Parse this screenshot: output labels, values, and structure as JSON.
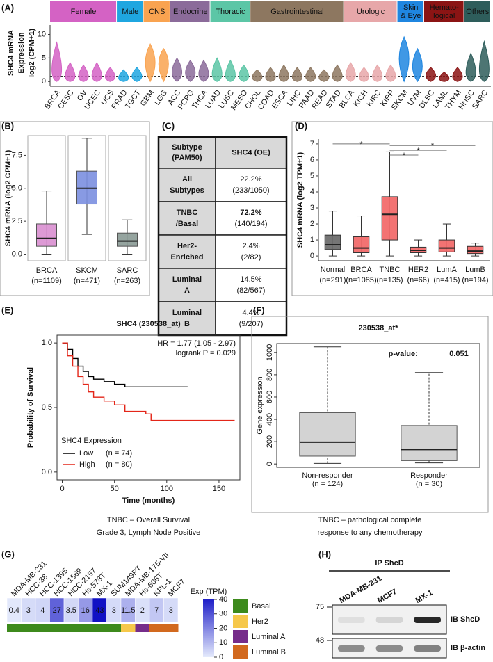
{
  "chart_data": [
    {
      "type": "violin",
      "label": "(A)",
      "ylabel": [
        "SHC4 mRNA",
        "Expression",
        "log2 (CPM+1)"
      ],
      "ylim": [
        -1,
        12
      ],
      "yticks": [
        0,
        5,
        10
      ],
      "hline": 1,
      "groups": [
        {
          "name": [
            "Female"
          ],
          "color": "#d462c4",
          "categories": [
            "BRCA",
            "CESC",
            "OV",
            "UCEC",
            "UCS"
          ],
          "medians": [
            1,
            0.4,
            0.5,
            0.5,
            0.6
          ],
          "maxima": [
            8.3,
            4,
            3.5,
            4,
            3
          ]
        },
        {
          "name": [
            "Male"
          ],
          "color": "#1fa6e0",
          "categories": [
            "PRAD",
            "TGCT"
          ],
          "medians": [
            0.3,
            0.8
          ],
          "maxima": [
            2.5,
            3
          ]
        },
        {
          "name": [
            "CNS"
          ],
          "color": "#f9a350",
          "categories": [
            "GBM",
            "LGG"
          ],
          "medians": [
            4,
            4
          ],
          "maxima": [
            8,
            7
          ]
        },
        {
          "name": [
            "Endocrine"
          ],
          "color": "#8b6b9a",
          "categories": [
            "ACC",
            "PCPG",
            "THCA"
          ],
          "medians": [
            1.5,
            1.5,
            1
          ],
          "maxima": [
            5,
            4.5,
            4.5
          ]
        },
        {
          "name": [
            "Thoracic"
          ],
          "color": "#5cc6a6",
          "categories": [
            "LUAD",
            "LUSC",
            "MESO"
          ],
          "medians": [
            0.8,
            0.6,
            0.7
          ],
          "maxima": [
            5,
            4.5,
            3.5
          ]
        },
        {
          "name": [
            "Gastrointestinal"
          ],
          "color": "#8d7760",
          "categories": [
            "CHOL",
            "COAD",
            "ESCA",
            "LIHC",
            "PAAD",
            "READ",
            "STAD"
          ],
          "medians": [
            0.6,
            0.5,
            0.5,
            0.4,
            0.6,
            0.5,
            0.6
          ],
          "maxima": [
            2.5,
            3,
            3.5,
            3,
            3,
            2.5,
            3.5
          ]
        },
        {
          "name": [
            "Urologic"
          ],
          "color": "#e7a7a9",
          "categories": [
            "BLCA",
            "KICH",
            "KIRC",
            "KIRP"
          ],
          "medians": [
            0.8,
            0.5,
            0.5,
            0.6
          ],
          "maxima": [
            4,
            3,
            3.5,
            3.5
          ]
        },
        {
          "name": [
            "Skin",
            "& Eye"
          ],
          "color": "#1f86e0",
          "categories": [
            "SKCM",
            "UVM"
          ],
          "medians": [
            5,
            3
          ],
          "maxima": [
            9.5,
            7
          ]
        },
        {
          "name": [
            "Hemato-",
            "logical"
          ],
          "color": "#8b1414",
          "categories": [
            "DLBC",
            "LAML",
            "THYM"
          ],
          "medians": [
            1,
            0.3,
            0.6
          ],
          "maxima": [
            3,
            2,
            3
          ]
        },
        {
          "name": [
            "Others"
          ],
          "color": "#2e5d5b",
          "categories": [
            "HNSC",
            "SARC"
          ],
          "medians": [
            1,
            1
          ],
          "maxima": [
            6,
            8.5
          ]
        }
      ]
    },
    {
      "type": "box",
      "label": "(B)",
      "ylabel": "SHC4 mRNA (log2 CPM+1)",
      "categories": [
        "BRCA",
        "SKCM",
        "SARC"
      ],
      "category_notes": [
        "(n=1109)",
        "(n=471)",
        "(n=263)"
      ],
      "colors": [
        "#d98fd0",
        "#7b8fe0",
        "#8a9a95"
      ],
      "ylim": [
        -0.5,
        9
      ],
      "yticks": [
        {
          "value": 0,
          "label": "0.0"
        },
        {
          "value": 2.5,
          "label": "2.5"
        },
        {
          "value": 5,
          "label": "5.0"
        },
        {
          "value": 7.5,
          "label": "7.5"
        }
      ],
      "boxes": [
        {
          "low": 0,
          "q1": 0.6,
          "median": 1.2,
          "q3": 2.3,
          "high": 4.8
        },
        {
          "low": 1.5,
          "q1": 3.8,
          "median": 5.0,
          "q3": 6.3,
          "high": 8.8
        },
        {
          "low": 0,
          "q1": 0.6,
          "median": 1.0,
          "q3": 1.6,
          "high": 2.6
        }
      ]
    },
    {
      "type": "table",
      "label": "(C)",
      "header": [
        [
          "Subtype",
          "(PAM50)"
        ],
        [
          "SHC4 (OE)"
        ]
      ],
      "rows": [
        {
          "subtype": [
            "All",
            "Subtypes"
          ],
          "percent": "22.2%",
          "count": "(233/1050)"
        },
        {
          "subtype": [
            "TNBC",
            "/Basal"
          ],
          "percent": "72.2%",
          "count": "(140/194)",
          "color": "#e02020"
        },
        {
          "subtype": [
            "Her2-",
            "Enriched"
          ],
          "percent": "2.4%",
          "count": "(2/82)"
        },
        {
          "subtype": [
            "Luminal",
            "A"
          ],
          "percent": "14.5%",
          "count": "(82/567)"
        },
        {
          "subtype": [
            "Luminal",
            "B"
          ],
          "percent": "4.4%",
          "count": "(9/207)"
        }
      ]
    },
    {
      "type": "box",
      "label": "(D)",
      "ylabel": "SHC4 mRNA (log2 TPM+1)",
      "categories": [
        "Normal",
        "BRCA",
        "TNBC",
        "HER2",
        "LumA",
        "LumB"
      ],
      "category_notes": [
        "(n=291)",
        "(n=1085)",
        "(n=135)",
        "(n=66)",
        "(n=415)",
        "(n=194)"
      ],
      "colors": [
        "#6e6e6e",
        "#f26b6b",
        "#f26b6b",
        "#f26b6b",
        "#f26b6b",
        "#f26b6b"
      ],
      "ylim": [
        -0.3,
        7.3
      ],
      "yticks": [
        0,
        1,
        2,
        3,
        4,
        5,
        6,
        7
      ],
      "boxes": [
        {
          "low": 0,
          "q1": 0.4,
          "median": 0.7,
          "q3": 1.3,
          "high": 2.8
        },
        {
          "low": 0,
          "q1": 0.2,
          "median": 0.5,
          "q3": 1.2,
          "high": 2.5
        },
        {
          "low": 0,
          "q1": 1.0,
          "median": 2.6,
          "q3": 3.7,
          "high": 6.5
        },
        {
          "low": 0,
          "q1": 0.2,
          "median": 0.35,
          "q3": 0.55,
          "high": 1.0
        },
        {
          "low": 0,
          "q1": 0.25,
          "median": 0.5,
          "q3": 1.0,
          "high": 2.0
        },
        {
          "low": 0,
          "q1": 0.15,
          "median": 0.3,
          "q3": 0.6,
          "high": 0.8
        }
      ],
      "significance": [
        {
          "from": 0,
          "to": 2,
          "y": 7.0,
          "label": "*"
        },
        {
          "from": 2,
          "to": 3,
          "y": 6.3,
          "label": "*"
        },
        {
          "from": 2,
          "to": 4,
          "y": 6.6,
          "label": "*"
        },
        {
          "from": 2,
          "to": 5,
          "y": 6.9,
          "label": "*"
        }
      ]
    },
    {
      "type": "km",
      "label": "(E)",
      "title": "SHC4 (230538_at)",
      "annotations": [
        "HR = 1.77 (1.05 - 2.97)",
        "logrank P = 0.029"
      ],
      "xlabel": "Time (months)",
      "ylabel": "Probability of Survival",
      "legend_title": "SHC4 Expression",
      "xlim": [
        -5,
        170
      ],
      "xticks": [
        0,
        50,
        100,
        150
      ],
      "ylim": [
        -0.06,
        1.06
      ],
      "yticks": [
        {
          "value": 0,
          "label": "0.0"
        },
        {
          "value": 0.5,
          "label": "0.5"
        },
        {
          "value": 1,
          "label": "1.0"
        }
      ],
      "series": [
        {
          "name": "Low",
          "note": "(n = 74)",
          "color": "#000000",
          "x": [
            0,
            5,
            10,
            15,
            20,
            25,
            30,
            40,
            50,
            60,
            120
          ],
          "values": [
            1,
            0.95,
            0.88,
            0.82,
            0.78,
            0.74,
            0.72,
            0.7,
            0.68,
            0.66,
            0.66
          ]
        },
        {
          "name": "High",
          "note": "(n = 80)",
          "color": "#e32619",
          "x": [
            0,
            5,
            10,
            15,
            20,
            25,
            30,
            40,
            50,
            60,
            80,
            85,
            165
          ],
          "values": [
            1,
            0.9,
            0.82,
            0.74,
            0.68,
            0.62,
            0.58,
            0.55,
            0.52,
            0.47,
            0.45,
            0.4,
            0.4
          ]
        }
      ],
      "caption": [
        "TNBC – Overall Survival",
        "Grade 3, Lymph Node Positive"
      ]
    },
    {
      "type": "box",
      "label": "(F)",
      "title": "230538_at*",
      "annotations": [
        "p-value:",
        "0.051"
      ],
      "ylabel": "Gene expression",
      "categories": [
        "Non-responder",
        "Responder"
      ],
      "category_notes": [
        "(n = 124)",
        "(n = 30)"
      ],
      "color": "#d3d3d3",
      "ylim": [
        -30,
        1080
      ],
      "yticks": [
        0,
        200,
        400,
        600,
        800,
        1000
      ],
      "boxes": [
        {
          "low": 5,
          "q1": 70,
          "median": 195,
          "q3": 460,
          "high": 1050
        },
        {
          "low": 10,
          "q1": 30,
          "median": 130,
          "q3": 345,
          "high": 820
        }
      ],
      "caption": [
        "TNBC – pathological complete",
        "response to any chemotherapy"
      ]
    },
    {
      "type": "heatmap",
      "label": "(G)",
      "categories": [
        "MDA-MB-231",
        "HCC-38",
        "HCC-1395",
        "HCC-1569",
        "HCC-2157",
        "Hs-578T",
        "MX-1",
        "SUM149PT",
        "MDA-MB-175-VII",
        "Hs-606T",
        "KPL-1",
        "MCF7"
      ],
      "values": [
        0.4,
        3,
        4,
        27,
        3.5,
        16,
        43,
        3,
        11.5,
        2,
        7,
        3
      ],
      "subtypes": [
        "Basal",
        "Basal",
        "Basal",
        "Basal",
        "Basal",
        "Basal",
        "Basal",
        "Basal",
        "Her2",
        "Luminal A",
        "Luminal B",
        "Luminal B"
      ],
      "colorbar_title": "Exp (TPM)",
      "colorbar_lim": [
        0,
        40
      ],
      "colorbar_ticks": [
        0,
        10,
        20,
        30,
        40
      ],
      "color_range": [
        "#e4eafc",
        "#2020c8"
      ],
      "subtype_legend": [
        {
          "name": "Basal",
          "color": "#3d8a1c"
        },
        {
          "name": "Her2",
          "color": "#f6c84a"
        },
        {
          "name": "Luminal A",
          "color": "#762c8a"
        },
        {
          "name": "Luminal B",
          "color": "#d2691e"
        }
      ]
    },
    {
      "type": "blot",
      "label": "(H)",
      "title": "IP ShcD",
      "lanes": [
        "MDA-MB-231",
        "MCF7",
        "MX-1"
      ],
      "blots": [
        {
          "marker": "75",
          "name": "IB ShcD",
          "intensity": [
            0.08,
            0.12,
            0.9
          ]
        },
        {
          "marker": "48",
          "name": "IB β-actin",
          "intensity": [
            0.45,
            0.45,
            0.5
          ]
        }
      ]
    }
  ]
}
